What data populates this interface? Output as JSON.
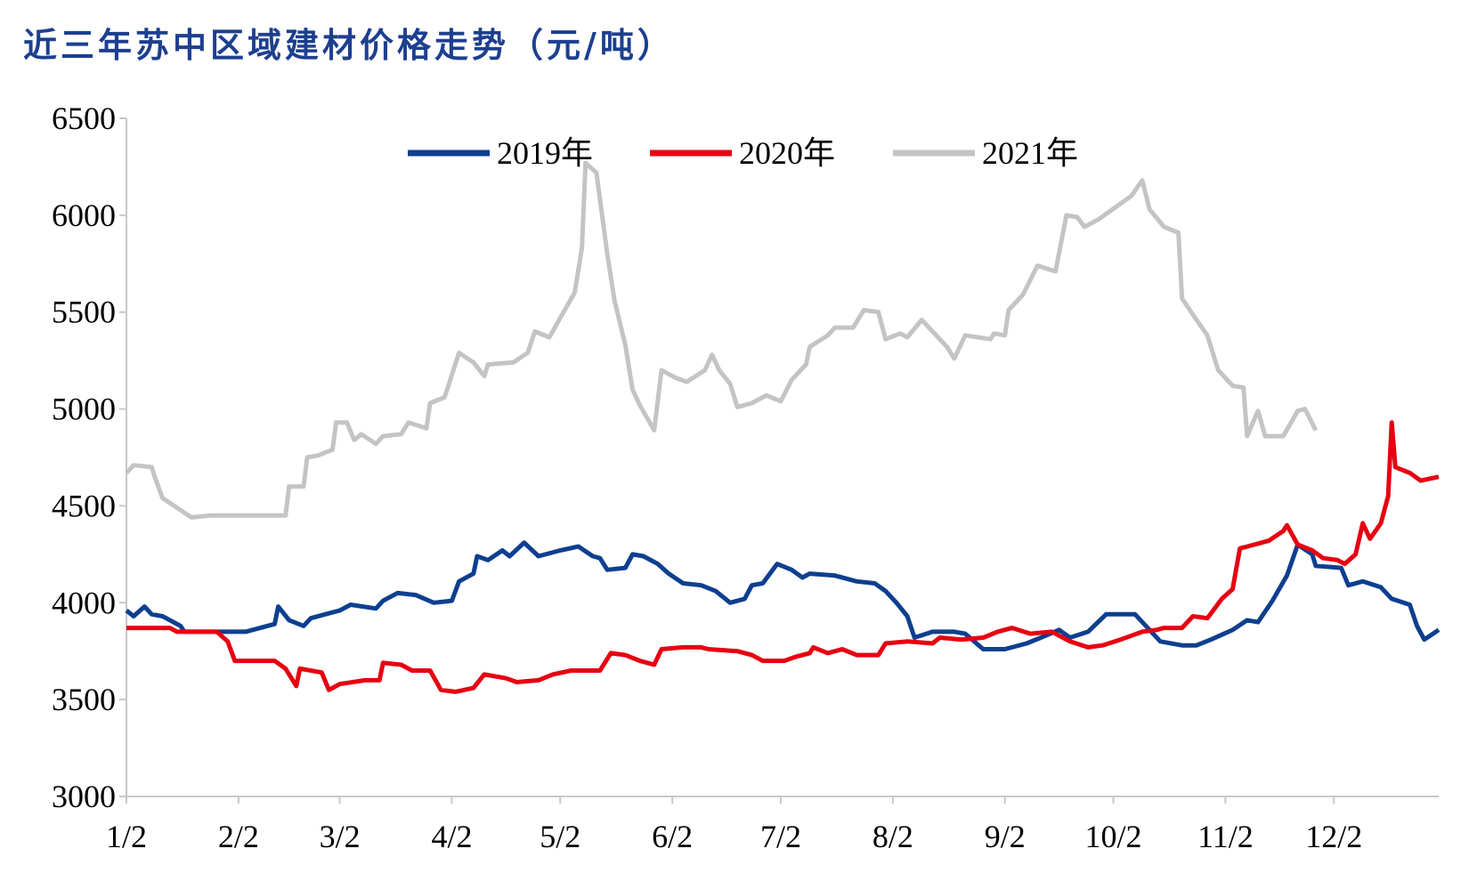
{
  "title": "近三年苏中区域建材价格走势（元/吨）",
  "chart_data": {
    "type": "line",
    "title": "近三年苏中区域建材价格走势（元/吨）",
    "xlabel": "",
    "ylabel": "",
    "ylim": [
      3000,
      6500
    ],
    "yticks": [
      "3000",
      "3500",
      "4000",
      "4500",
      "5000",
      "5500",
      "6000",
      "6500"
    ],
    "xticks": [
      "1/2",
      "2/2",
      "3/2",
      "4/2",
      "5/2",
      "6/2",
      "7/2",
      "8/2",
      "9/2",
      "10/2",
      "11/2",
      "12/2"
    ],
    "xrange": [
      "1/2",
      "12/31"
    ],
    "grid": false,
    "legend_position": "top-center",
    "series": [
      {
        "name": "2019年",
        "color": "#0d3f8f",
        "points": [
          [
            "1/2",
            3960
          ],
          [
            "1/4",
            3930
          ],
          [
            "1/7",
            3980
          ],
          [
            "1/9",
            3940
          ],
          [
            "1/12",
            3930
          ],
          [
            "1/17",
            3880
          ],
          [
            "1/18",
            3850
          ],
          [
            "2/4",
            3850
          ],
          [
            "2/12",
            3890
          ],
          [
            "2/13",
            3980
          ],
          [
            "2/16",
            3910
          ],
          [
            "2/20",
            3880
          ],
          [
            "2/22",
            3920
          ],
          [
            "2/26",
            3940
          ],
          [
            "3/2",
            3960
          ],
          [
            "3/5",
            3990
          ],
          [
            "3/12",
            3970
          ],
          [
            "3/14",
            4010
          ],
          [
            "3/18",
            4050
          ],
          [
            "3/23",
            4040
          ],
          [
            "3/28",
            4000
          ],
          [
            "4/2",
            4010
          ],
          [
            "4/4",
            4110
          ],
          [
            "4/8",
            4150
          ],
          [
            "4/9",
            4240
          ],
          [
            "4/12",
            4220
          ],
          [
            "4/16",
            4270
          ],
          [
            "4/18",
            4240
          ],
          [
            "4/22",
            4310
          ],
          [
            "4/26",
            4240
          ],
          [
            "5/2",
            4270
          ],
          [
            "5/7",
            4290
          ],
          [
            "5/11",
            4240
          ],
          [
            "5/13",
            4230
          ],
          [
            "5/15",
            4170
          ],
          [
            "5/20",
            4180
          ],
          [
            "5/22",
            4250
          ],
          [
            "5/25",
            4240
          ],
          [
            "5/29",
            4200
          ],
          [
            "6/1",
            4150
          ],
          [
            "6/5",
            4100
          ],
          [
            "6/10",
            4090
          ],
          [
            "6/14",
            4060
          ],
          [
            "6/18",
            4000
          ],
          [
            "6/22",
            4020
          ],
          [
            "6/24",
            4090
          ],
          [
            "6/27",
            4100
          ],
          [
            "7/1",
            4200
          ],
          [
            "7/5",
            4170
          ],
          [
            "7/8",
            4130
          ],
          [
            "7/10",
            4150
          ],
          [
            "7/17",
            4140
          ],
          [
            "7/23",
            4110
          ],
          [
            "7/28",
            4100
          ],
          [
            "7/31",
            4060
          ],
          [
            "8/3",
            4000
          ],
          [
            "8/6",
            3930
          ],
          [
            "8/8",
            3820
          ],
          [
            "8/13",
            3850
          ],
          [
            "8/19",
            3850
          ],
          [
            "8/22",
            3840
          ],
          [
            "8/27",
            3760
          ],
          [
            "9/2",
            3760
          ],
          [
            "9/8",
            3790
          ],
          [
            "9/12",
            3820
          ],
          [
            "9/17",
            3860
          ],
          [
            "9/20",
            3820
          ],
          [
            "9/25",
            3850
          ],
          [
            "9/30",
            3940
          ],
          [
            "10/8",
            3940
          ],
          [
            "10/11",
            3880
          ],
          [
            "10/15",
            3800
          ],
          [
            "10/21",
            3780
          ],
          [
            "10/25",
            3780
          ],
          [
            "10/29",
            3810
          ],
          [
            "11/4",
            3860
          ],
          [
            "11/8",
            3910
          ],
          [
            "11/11",
            3900
          ],
          [
            "11/15",
            4010
          ],
          [
            "11/19",
            4140
          ],
          [
            "11/22",
            4300
          ],
          [
            "11/26",
            4250
          ],
          [
            "11/27",
            4190
          ],
          [
            "12/4",
            4180
          ],
          [
            "12/6",
            4090
          ],
          [
            "12/10",
            4110
          ],
          [
            "12/15",
            4080
          ],
          [
            "12/18",
            4020
          ],
          [
            "12/23",
            3990
          ],
          [
            "12/25",
            3880
          ],
          [
            "12/27",
            3810
          ],
          [
            "12/31",
            3860
          ]
        ]
      },
      {
        "name": "2020年",
        "color": "#e60012",
        "points": [
          [
            "1/2",
            3870
          ],
          [
            "1/14",
            3870
          ],
          [
            "1/16",
            3850
          ],
          [
            "1/27",
            3850
          ],
          [
            "1/30",
            3800
          ],
          [
            "2/1",
            3700
          ],
          [
            "2/12",
            3700
          ],
          [
            "2/15",
            3660
          ],
          [
            "2/18",
            3570
          ],
          [
            "2/19",
            3660
          ],
          [
            "2/25",
            3640
          ],
          [
            "2/27",
            3550
          ],
          [
            "3/2",
            3580
          ],
          [
            "3/9",
            3600
          ],
          [
            "3/13",
            3600
          ],
          [
            "3/14",
            3690
          ],
          [
            "3/19",
            3680
          ],
          [
            "3/22",
            3650
          ],
          [
            "3/27",
            3650
          ],
          [
            "3/30",
            3550
          ],
          [
            "4/3",
            3540
          ],
          [
            "4/8",
            3560
          ],
          [
            "4/11",
            3630
          ],
          [
            "4/17",
            3610
          ],
          [
            "4/20",
            3590
          ],
          [
            "4/26",
            3600
          ],
          [
            "4/30",
            3630
          ],
          [
            "5/5",
            3650
          ],
          [
            "5/13",
            3650
          ],
          [
            "5/16",
            3740
          ],
          [
            "5/20",
            3730
          ],
          [
            "5/24",
            3700
          ],
          [
            "5/28",
            3680
          ],
          [
            "5/30",
            3760
          ],
          [
            "6/5",
            3770
          ],
          [
            "6/10",
            3770
          ],
          [
            "6/12",
            3760
          ],
          [
            "6/20",
            3750
          ],
          [
            "6/24",
            3730
          ],
          [
            "6/27",
            3700
          ],
          [
            "7/3",
            3700
          ],
          [
            "7/6",
            3720
          ],
          [
            "7/10",
            3740
          ],
          [
            "7/11",
            3770
          ],
          [
            "7/15",
            3740
          ],
          [
            "7/19",
            3760
          ],
          [
            "7/23",
            3730
          ],
          [
            "7/29",
            3730
          ],
          [
            "7/31",
            3790
          ],
          [
            "8/6",
            3800
          ],
          [
            "8/13",
            3790
          ],
          [
            "8/15",
            3820
          ],
          [
            "8/21",
            3810
          ],
          [
            "8/27",
            3820
          ],
          [
            "8/31",
            3850
          ],
          [
            "9/4",
            3870
          ],
          [
            "9/9",
            3840
          ],
          [
            "9/15",
            3850
          ],
          [
            "9/20",
            3800
          ],
          [
            "9/25",
            3770
          ],
          [
            "9/29",
            3780
          ],
          [
            "10/4",
            3810
          ],
          [
            "10/10",
            3850
          ],
          [
            "10/14",
            3860
          ],
          [
            "10/16",
            3870
          ],
          [
            "10/21",
            3870
          ],
          [
            "10/24",
            3930
          ],
          [
            "10/28",
            3920
          ],
          [
            "11/1",
            4020
          ],
          [
            "11/4",
            4070
          ],
          [
            "11/6",
            4280
          ],
          [
            "11/10",
            4300
          ],
          [
            "11/14",
            4320
          ],
          [
            "11/18",
            4370
          ],
          [
            "11/19",
            4400
          ],
          [
            "11/22",
            4300
          ],
          [
            "11/26",
            4270
          ],
          [
            "11/29",
            4230
          ],
          [
            "12/3",
            4220
          ],
          [
            "12/5",
            4200
          ],
          [
            "12/8",
            4250
          ],
          [
            "12/10",
            4410
          ],
          [
            "12/12",
            4330
          ],
          [
            "12/15",
            4410
          ],
          [
            "12/17",
            4550
          ],
          [
            "12/18",
            4930
          ],
          [
            "12/19",
            4700
          ],
          [
            "12/23",
            4670
          ],
          [
            "12/26",
            4630
          ],
          [
            "12/31",
            4650
          ]
        ]
      },
      {
        "name": "2021年",
        "color": "#c4c4c4",
        "points": [
          [
            "1/2",
            4670
          ],
          [
            "1/4",
            4710
          ],
          [
            "1/9",
            4700
          ],
          [
            "1/10",
            4640
          ],
          [
            "1/12",
            4540
          ],
          [
            "1/16",
            4490
          ],
          [
            "1/20",
            4440
          ],
          [
            "1/25",
            4450
          ],
          [
            "2/15",
            4450
          ],
          [
            "2/16",
            4600
          ],
          [
            "2/20",
            4600
          ],
          [
            "2/21",
            4750
          ],
          [
            "2/24",
            4760
          ],
          [
            "2/28",
            4790
          ],
          [
            "3/1",
            4930
          ],
          [
            "3/4",
            4930
          ],
          [
            "3/6",
            4840
          ],
          [
            "3/8",
            4870
          ],
          [
            "3/12",
            4820
          ],
          [
            "3/14",
            4860
          ],
          [
            "3/19",
            4870
          ],
          [
            "3/21",
            4930
          ],
          [
            "3/26",
            4900
          ],
          [
            "3/27",
            5030
          ],
          [
            "3/31",
            5060
          ],
          [
            "4/4",
            5290
          ],
          [
            "4/8",
            5240
          ],
          [
            "4/11",
            5170
          ],
          [
            "4/12",
            5230
          ],
          [
            "4/19",
            5240
          ],
          [
            "4/23",
            5290
          ],
          [
            "4/25",
            5400
          ],
          [
            "4/29",
            5370
          ],
          [
            "5/2",
            5470
          ],
          [
            "5/6",
            5600
          ],
          [
            "5/8",
            5830
          ],
          [
            "5/9",
            6270
          ],
          [
            "5/12",
            6220
          ],
          [
            "5/15",
            5800
          ],
          [
            "5/17",
            5560
          ],
          [
            "5/20",
            5330
          ],
          [
            "5/22",
            5100
          ],
          [
            "5/24",
            5020
          ],
          [
            "5/28",
            4890
          ],
          [
            "5/30",
            5200
          ],
          [
            "6/3",
            5160
          ],
          [
            "6/6",
            5140
          ],
          [
            "6/11",
            5200
          ],
          [
            "6/13",
            5280
          ],
          [
            "6/15",
            5200
          ],
          [
            "6/18",
            5130
          ],
          [
            "6/20",
            5010
          ],
          [
            "6/24",
            5030
          ],
          [
            "6/28",
            5070
          ],
          [
            "7/2",
            5040
          ],
          [
            "7/5",
            5150
          ],
          [
            "7/9",
            5230
          ],
          [
            "7/10",
            5320
          ],
          [
            "7/15",
            5380
          ],
          [
            "7/17",
            5420
          ],
          [
            "7/22",
            5420
          ],
          [
            "7/25",
            5510
          ],
          [
            "7/29",
            5500
          ],
          [
            "7/31",
            5360
          ],
          [
            "8/4",
            5390
          ],
          [
            "8/6",
            5370
          ],
          [
            "8/10",
            5460
          ],
          [
            "8/13",
            5400
          ],
          [
            "8/17",
            5320
          ],
          [
            "8/19",
            5260
          ],
          [
            "8/22",
            5380
          ],
          [
            "8/29",
            5360
          ],
          [
            "8/30",
            5390
          ],
          [
            "9/2",
            5380
          ],
          [
            "9/3",
            5510
          ],
          [
            "9/7",
            5590
          ],
          [
            "9/11",
            5740
          ],
          [
            "9/16",
            5710
          ],
          [
            "9/19",
            6000
          ],
          [
            "9/22",
            5990
          ],
          [
            "9/24",
            5940
          ],
          [
            "9/28",
            5980
          ],
          [
            "10/7",
            6100
          ],
          [
            "10/10",
            6180
          ],
          [
            "10/12",
            6030
          ],
          [
            "10/16",
            5940
          ],
          [
            "10/20",
            5910
          ],
          [
            "10/21",
            5570
          ],
          [
            "10/25",
            5460
          ],
          [
            "10/28",
            5380
          ],
          [
            "10/31",
            5200
          ],
          [
            "11/4",
            5120
          ],
          [
            "11/7",
            5110
          ],
          [
            "11/8",
            4860
          ],
          [
            "11/11",
            4990
          ],
          [
            "11/13",
            4860
          ],
          [
            "11/18",
            4860
          ],
          [
            "11/22",
            4990
          ],
          [
            "11/24",
            5000
          ],
          [
            "11/27",
            4890
          ]
        ]
      }
    ]
  }
}
